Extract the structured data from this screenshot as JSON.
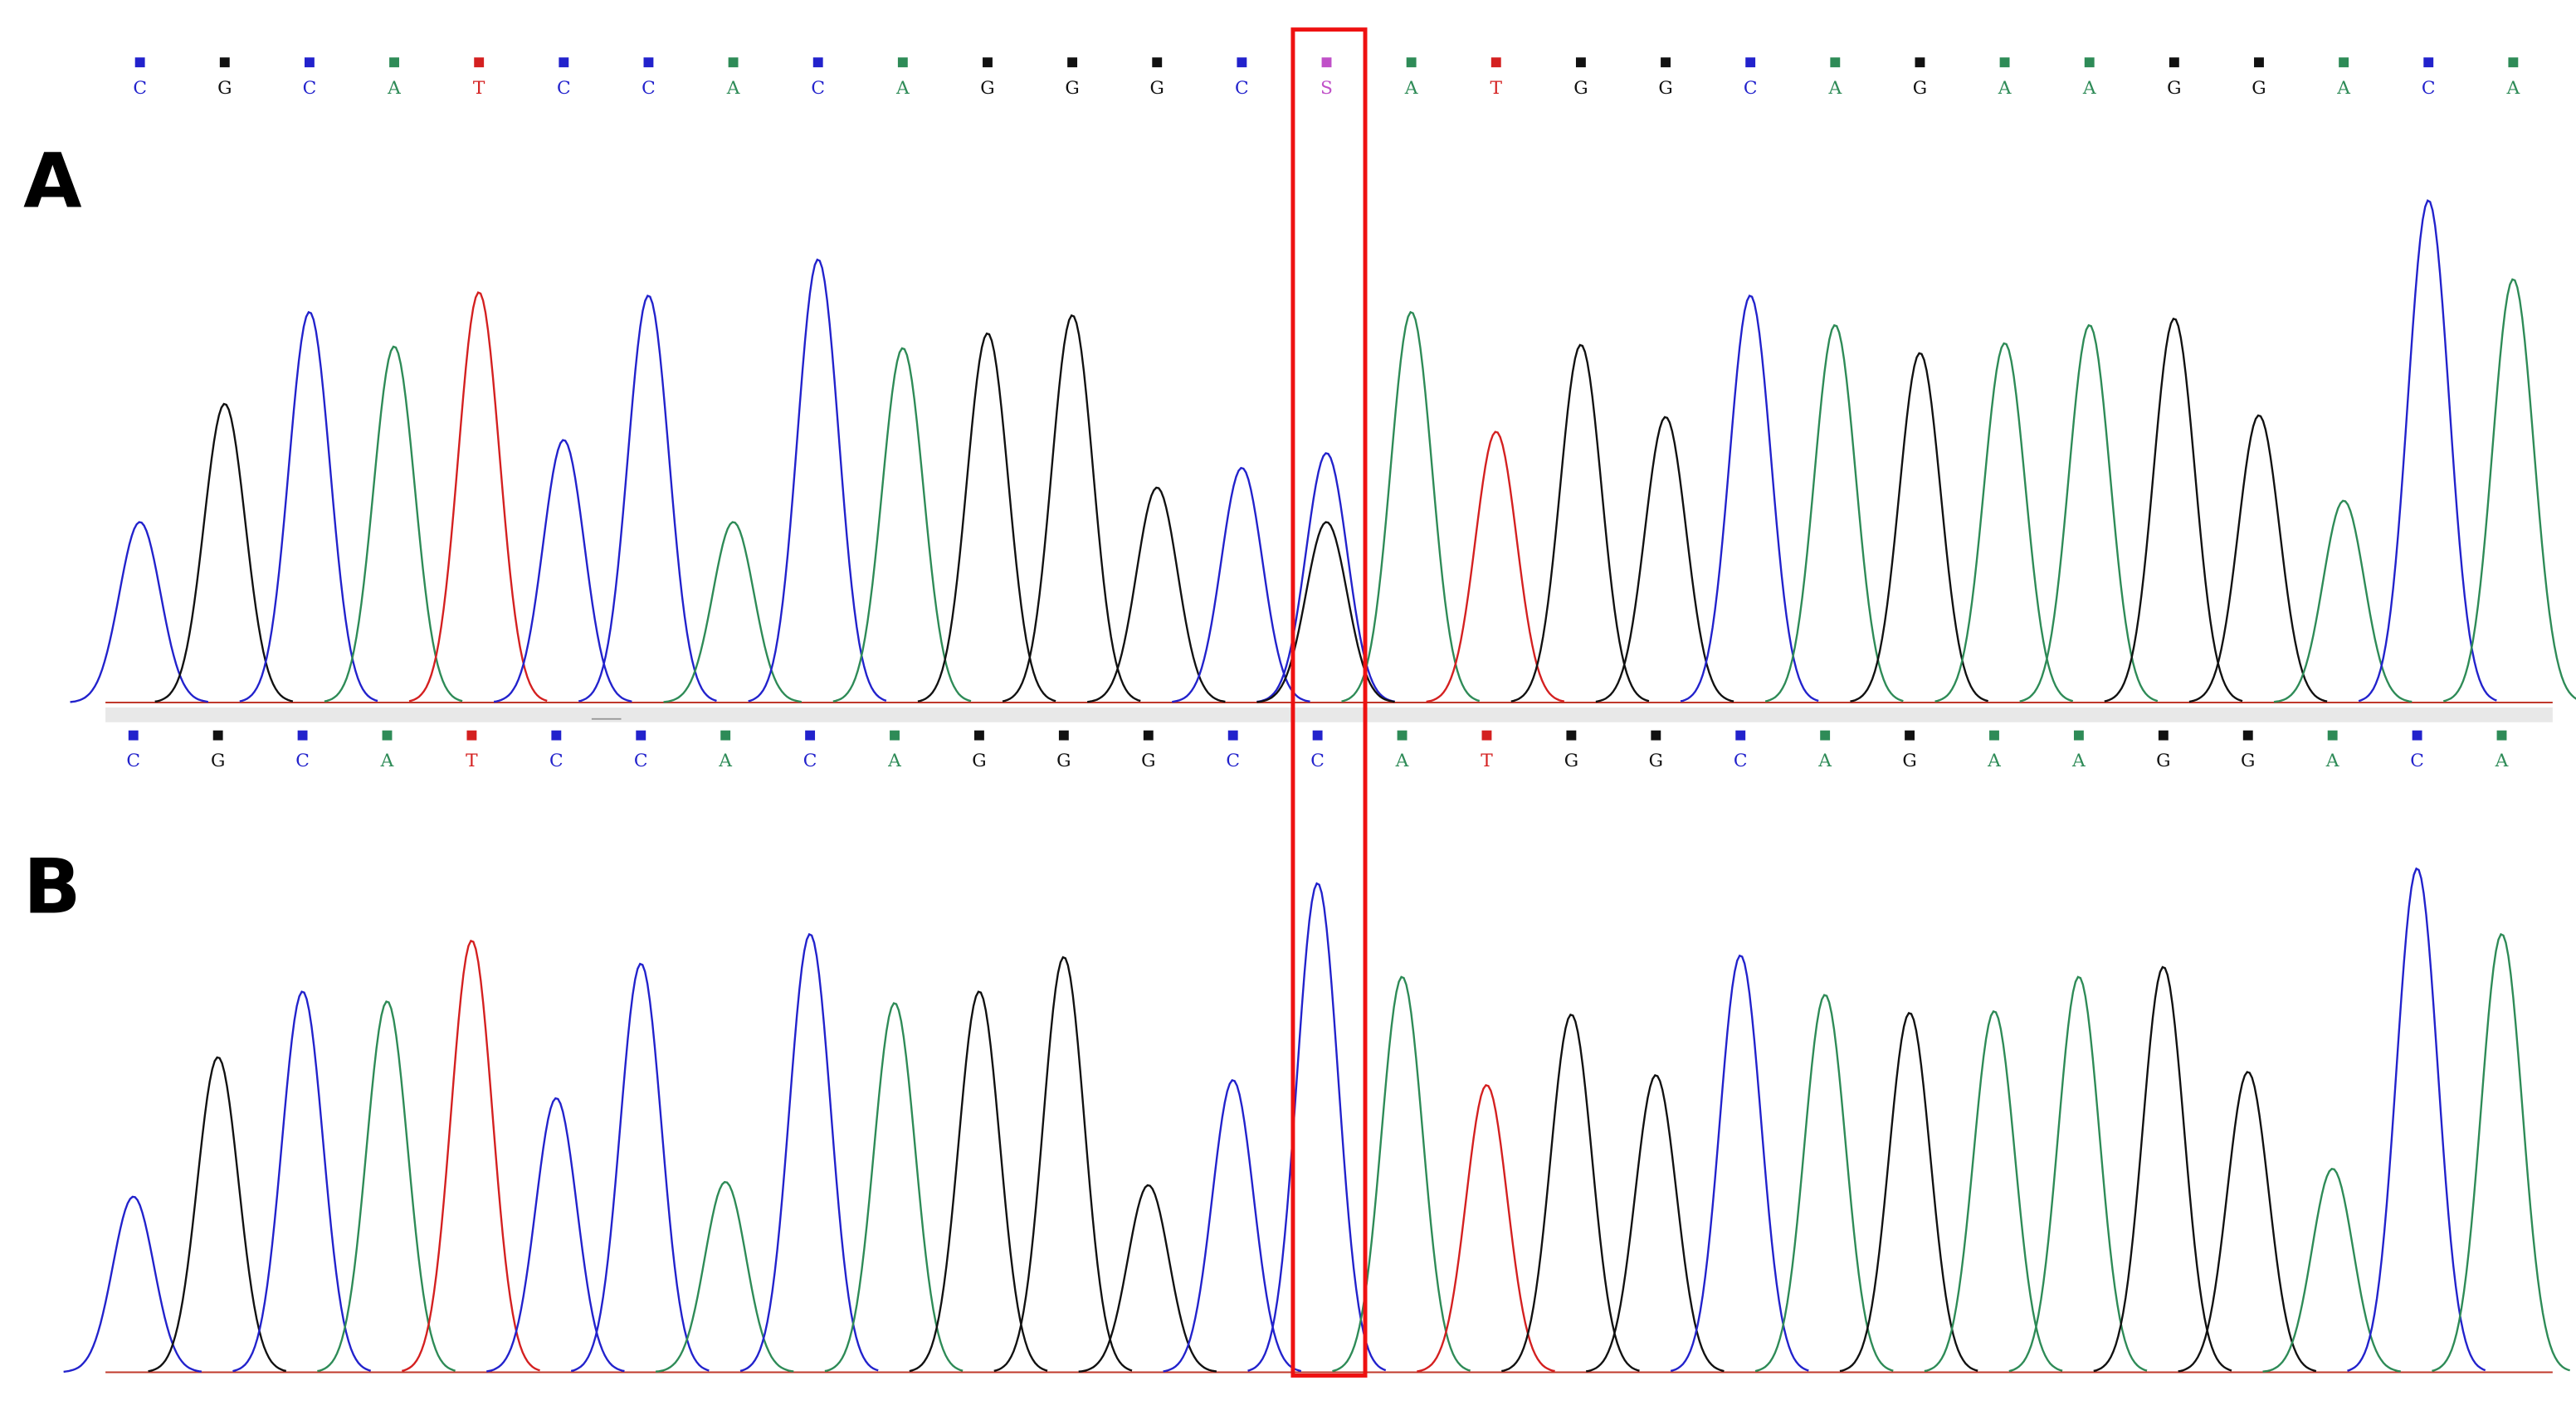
{
  "channel_colors": {
    "A": "#2e8b57",
    "C": "#2222cc",
    "G": "#111111",
    "T": "#d42020",
    "S": "#c050c8"
  },
  "panels": [
    {
      "label": "A",
      "calls": [
        "C",
        "G",
        "C",
        "A",
        "T",
        "C",
        "C",
        "A",
        "C",
        "A",
        "G",
        "G",
        "G",
        "C",
        "S",
        "A",
        "T",
        "G",
        "G",
        "C",
        "A",
        "G",
        "A",
        "A",
        "G",
        "G",
        "A",
        "C",
        "A"
      ],
      "peaks": [
        {
          "C": 110
        },
        {
          "G": 182
        },
        {
          "C": 238
        },
        {
          "A": 217
        },
        {
          "T": 250
        },
        {
          "C": 160
        },
        {
          "C": 248
        },
        {
          "A": 110
        },
        {
          "C": 270
        },
        {
          "A": 216
        },
        {
          "G": 225
        },
        {
          "G": 236
        },
        {
          "G": 131
        },
        {
          "C": 143
        },
        {
          "C": 152,
          "G": 110
        },
        {
          "A": 238
        },
        {
          "T": 165
        },
        {
          "G": 218
        },
        {
          "G": 174
        },
        {
          "C": 248
        },
        {
          "A": 230
        },
        {
          "G": 213
        },
        {
          "A": 219
        },
        {
          "A": 230
        },
        {
          "G": 234
        },
        {
          "G": 175
        },
        {
          "A": 123
        },
        {
          "C": 306
        },
        {
          "A": 258
        }
      ]
    },
    {
      "label": "B",
      "calls": [
        "C",
        "G",
        "C",
        "A",
        "T",
        "C",
        "C",
        "A",
        "C",
        "A",
        "G",
        "G",
        "G",
        "C",
        "C",
        "A",
        "T",
        "G",
        "G",
        "C",
        "A",
        "G",
        "A",
        "A",
        "G",
        "G",
        "A",
        "C",
        "A"
      ],
      "peaks": [
        {
          "C": 107
        },
        {
          "G": 192
        },
        {
          "C": 232
        },
        {
          "A": 226
        },
        {
          "T": 263
        },
        {
          "C": 167
        },
        {
          "C": 249
        },
        {
          "A": 116
        },
        {
          "C": 267
        },
        {
          "A": 225
        },
        {
          "G": 232
        },
        {
          "G": 253
        },
        {
          "G": 114
        },
        {
          "C": 178
        },
        {
          "C": 298
        },
        {
          "A": 241
        },
        {
          "T": 175
        },
        {
          "G": 218
        },
        {
          "G": 181
        },
        {
          "C": 254
        },
        {
          "A": 230
        },
        {
          "G": 219
        },
        {
          "A": 220
        },
        {
          "A": 241
        },
        {
          "G": 247
        },
        {
          "G": 183
        },
        {
          "A": 124
        },
        {
          "C": 307
        },
        {
          "A": 267
        }
      ]
    }
  ]
}
